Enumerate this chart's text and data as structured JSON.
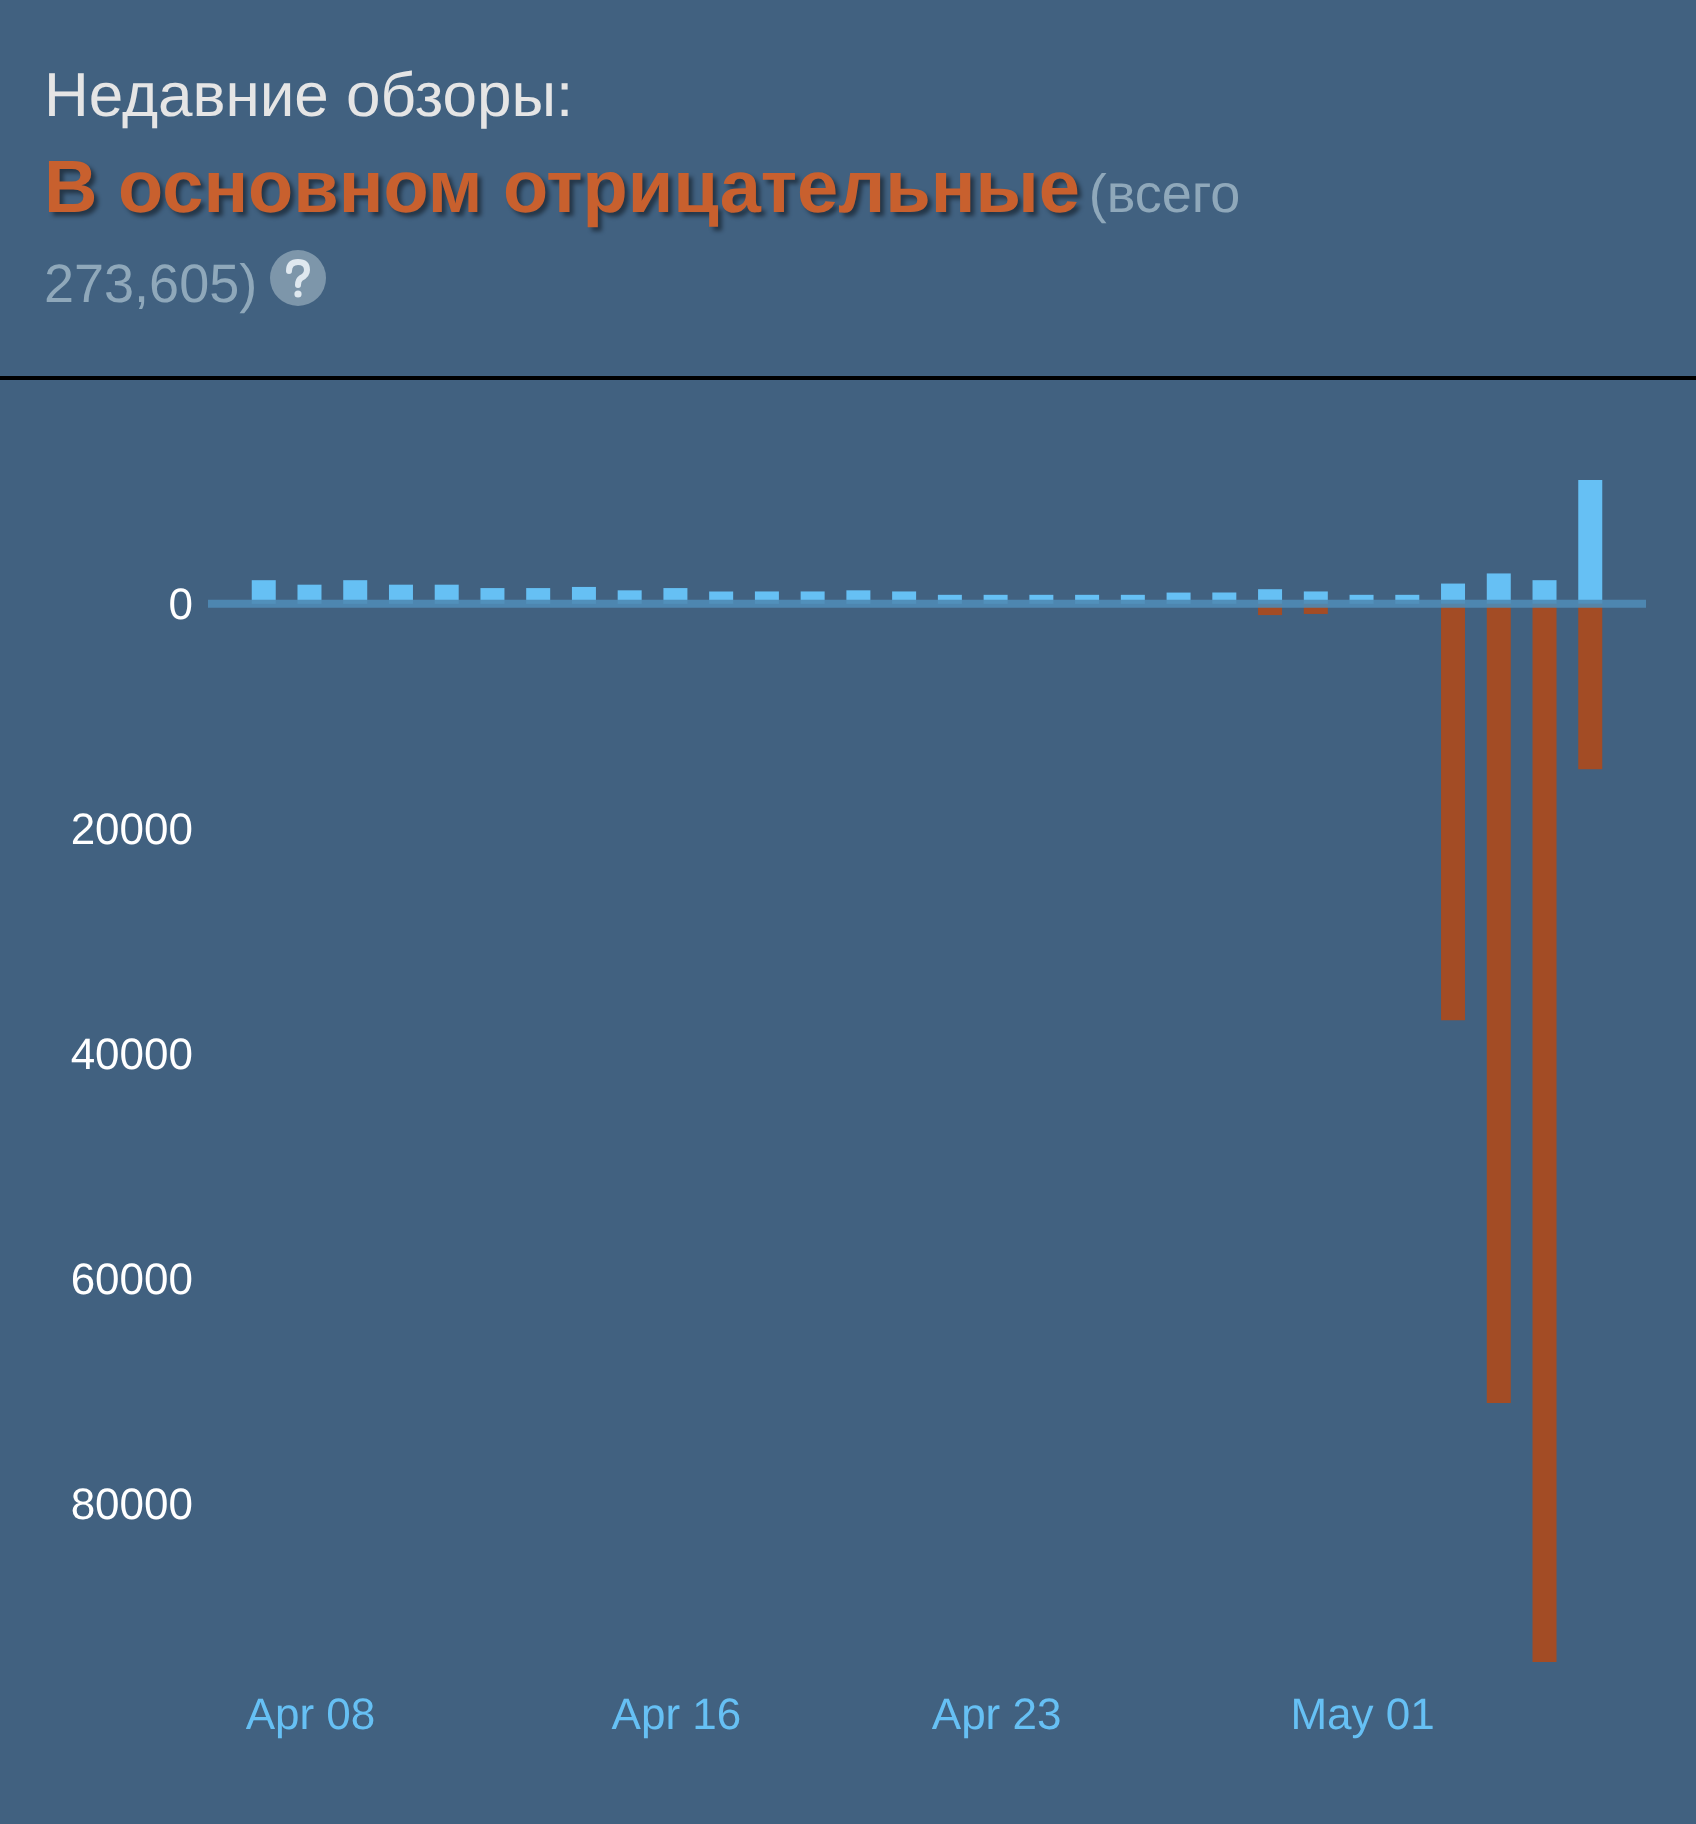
{
  "chart_data": {
    "type": "bar",
    "title": "Недавние обзоры:",
    "subtitle": "В основном отрицательные",
    "annotations": [
      "(всего 273,605)"
    ],
    "x": [
      "--04-07",
      "--04-08",
      "--04-09",
      "--04-10",
      "--04-11",
      "--04-12",
      "--04-13",
      "--04-14",
      "--04-15",
      "--04-16",
      "--04-17",
      "--04-18",
      "--04-19",
      "--04-20",
      "--04-21",
      "--04-22",
      "--04-23",
      "--04-24",
      "--04-25",
      "--04-26",
      "--04-27",
      "--04-28",
      "--04-29",
      "--04-30",
      "--05-01",
      "--05-02",
      "--05-03",
      "--05-04",
      "--05-05",
      "--05-06"
    ],
    "series": [
      {
        "color": "#66c0f4",
        "values": [
          2100,
          1700,
          2100,
          1700,
          1700,
          1400,
          1400,
          1500,
          1200,
          1400,
          1100,
          1100,
          1100,
          1200,
          1100,
          800,
          800,
          800,
          800,
          800,
          1000,
          1000,
          1300,
          1100,
          800,
          800,
          1800,
          2700,
          2100,
          11000
        ]
      },
      {
        "color": "#a34c25",
        "values": [
          0,
          0,
          0,
          0,
          0,
          0,
          0,
          0,
          0,
          0,
          0,
          0,
          0,
          0,
          0,
          0,
          0,
          0,
          0,
          0,
          0,
          0,
          -1000,
          -900,
          null,
          null,
          -37000,
          -71000,
          -94000,
          -14700
        ]
      }
    ],
    "xlim": [
      "--04-06",
      "--05-07"
    ],
    "ylim": [
      -94000,
      11000
    ],
    "xticks": [
      {
        "value": "--04-08",
        "label": "Apr 08"
      },
      {
        "value": "--04-16",
        "label": "Apr 16"
      },
      {
        "value": "--04-23",
        "label": "Apr 23"
      },
      {
        "value": "--05-01",
        "label": "May 01"
      }
    ],
    "yticks": [
      {
        "value": 0,
        "label": "0"
      },
      {
        "value": -20000,
        "label": "20000"
      },
      {
        "value": -40000,
        "label": "40000"
      },
      {
        "value": -60000,
        "label": "60000"
      },
      {
        "value": -80000,
        "label": "80000"
      }
    ],
    "ref_lines": [
      {
        "axis": "y",
        "value": 0,
        "color": "#4f8bb5"
      }
    ]
  }
}
